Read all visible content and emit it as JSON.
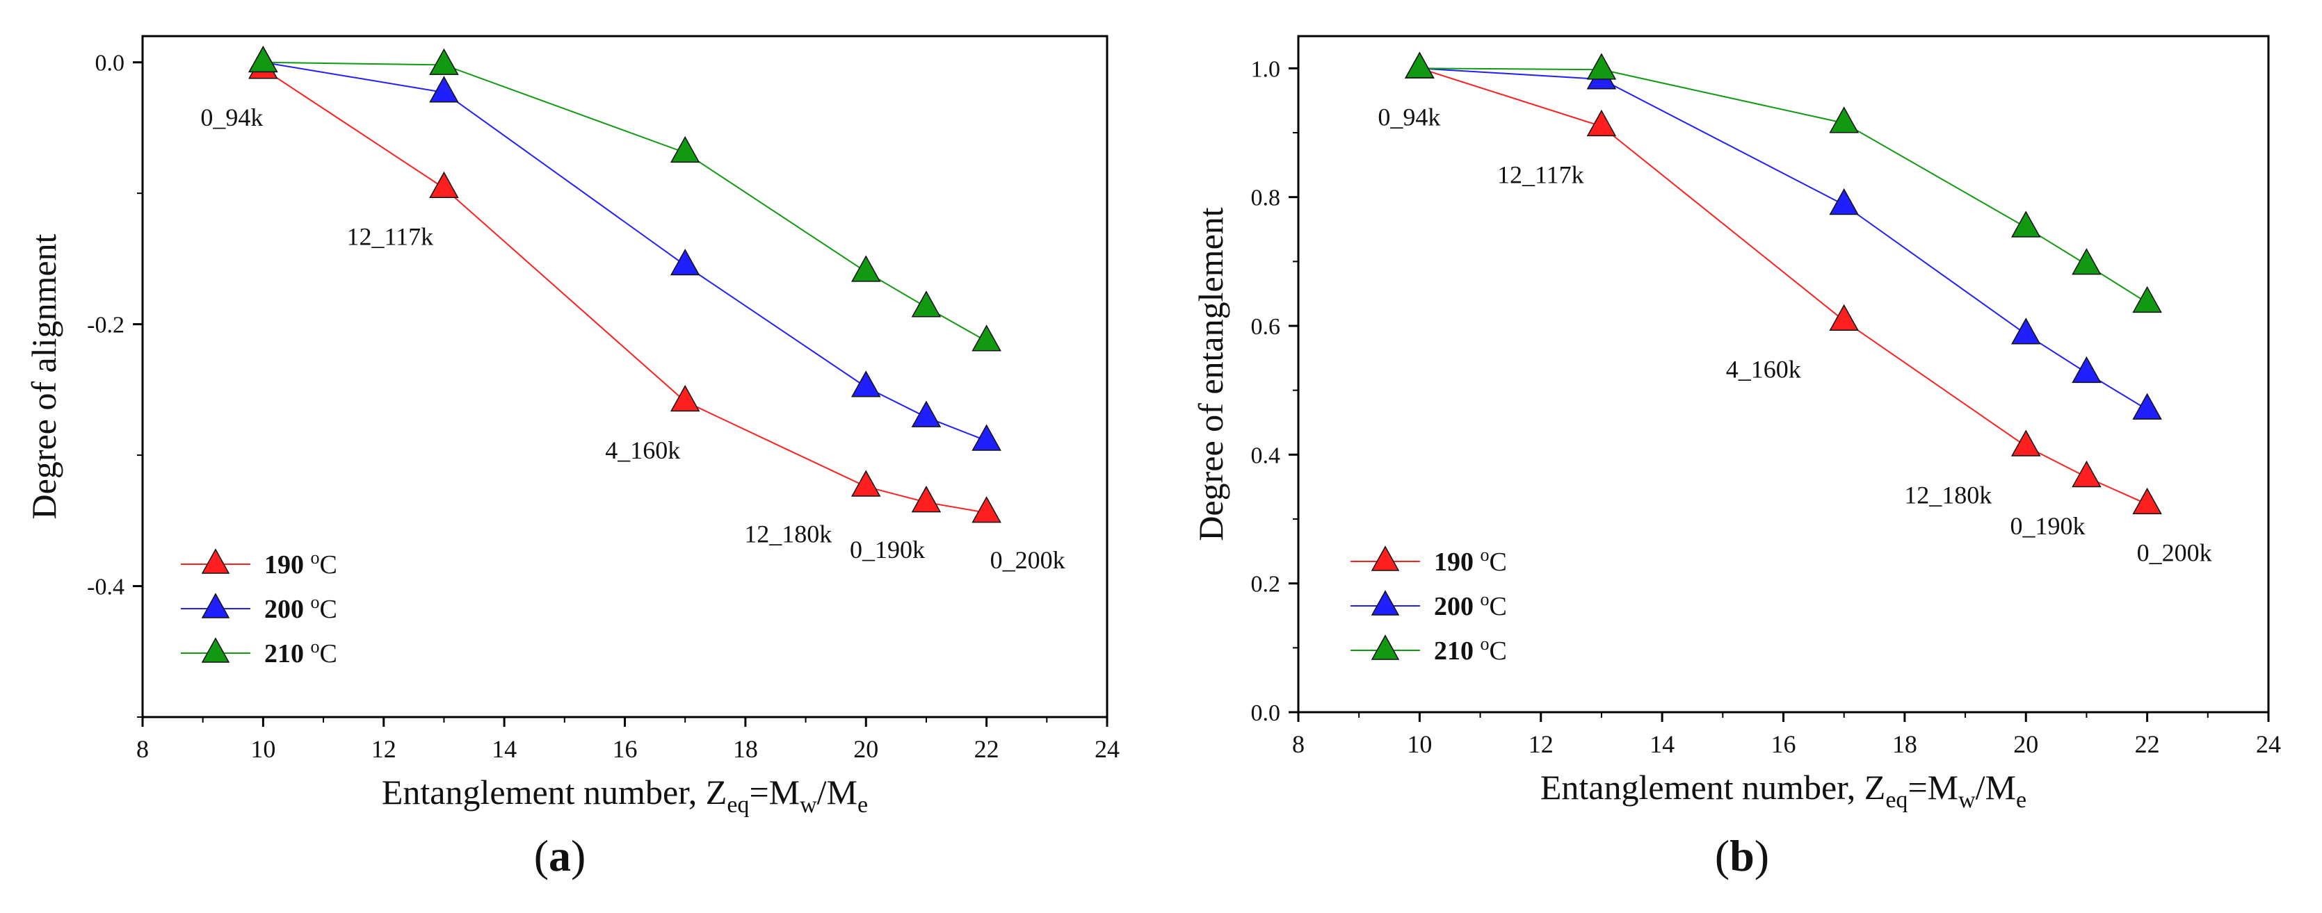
{
  "chart_data": [
    {
      "type": "line",
      "panel": "(a)",
      "panel_letter": "a",
      "xlabel": "Entanglement number,",
      "ylabel": "Degree of alignment",
      "xlim": [
        8,
        24
      ],
      "ylim": [
        -0.5,
        0.02
      ],
      "xticks": [
        8,
        10,
        12,
        14,
        16,
        18,
        20,
        22,
        24
      ],
      "yticks": [
        0.0,
        -0.2,
        -0.4
      ],
      "ytick_labels": [
        "0.0",
        "-0.2",
        "-0.4"
      ],
      "x": [
        10,
        13,
        17,
        20,
        21,
        22
      ],
      "series": [
        {
          "name": "190",
          "color": "#ff1f1f",
          "values": [
            -0.005,
            -0.096,
            -0.259,
            -0.324,
            -0.336,
            -0.344
          ]
        },
        {
          "name": "200",
          "color": "#1f1fff",
          "values": [
            0.0,
            -0.023,
            -0.155,
            -0.248,
            -0.271,
            -0.289
          ]
        },
        {
          "name": "210",
          "color": "#119911",
          "values": [
            0.0,
            -0.002,
            -0.069,
            -0.16,
            -0.187,
            -0.213
          ]
        }
      ],
      "annotations": [
        {
          "text": "0_94k",
          "x": 10,
          "y": -0.005
        },
        {
          "text": "12_117k",
          "x": 13,
          "y": -0.096
        },
        {
          "text": "4_160k",
          "x": 17,
          "y": -0.259
        },
        {
          "text": "12_180k",
          "x": 20,
          "y": -0.324
        },
        {
          "text": "0_190k",
          "x": 21,
          "y": -0.336
        },
        {
          "text": "0_200k",
          "x": 22,
          "y": -0.344
        }
      ],
      "legend_position": "bottom-left"
    },
    {
      "type": "line",
      "panel": "(b)",
      "panel_letter": "b",
      "xlabel": "Entanglement number,",
      "ylabel": "Degree of entanglement",
      "xlim": [
        8,
        24
      ],
      "ylim": [
        0.0,
        1.05
      ],
      "xticks": [
        8,
        10,
        12,
        14,
        16,
        18,
        20,
        22,
        24
      ],
      "yticks": [
        0.0,
        0.2,
        0.4,
        0.6,
        0.8,
        1.0
      ],
      "ytick_labels": [
        "0.0",
        "0.2",
        "0.4",
        "0.6",
        "0.8",
        "1.0"
      ],
      "x": [
        10,
        13,
        17,
        20,
        21,
        22
      ],
      "series": [
        {
          "name": "190",
          "color": "#ff1f1f",
          "values": [
            1.0,
            0.91,
            0.608,
            0.413,
            0.365,
            0.323
          ]
        },
        {
          "name": "200",
          "color": "#1f1fff",
          "values": [
            1.0,
            0.983,
            0.788,
            0.587,
            0.527,
            0.47
          ]
        },
        {
          "name": "210",
          "color": "#119911",
          "values": [
            1.0,
            0.998,
            0.915,
            0.753,
            0.695,
            0.636
          ]
        }
      ],
      "annotations": [
        {
          "text": "0_94k",
          "x": 10,
          "y": 1.0
        },
        {
          "text": "12_117k",
          "x": 13,
          "y": 0.91
        },
        {
          "text": "4_160k",
          "x": 17,
          "y": 0.608
        },
        {
          "text": "12_180k",
          "x": 20,
          "y": 0.413
        },
        {
          "text": "0_190k",
          "x": 21,
          "y": 0.365
        },
        {
          "text": "0_200k",
          "x": 22,
          "y": 0.323
        }
      ],
      "legend_position": "bottom-left"
    }
  ],
  "legend_unit": "C",
  "degree_symbol": "o",
  "z_symbol": "Z",
  "z_subscript": "eq",
  "m_w_base": "=M",
  "m_w_sub": "w",
  "m_e_base": "/M",
  "m_e_sub": "e",
  "paren_open": "(",
  "paren_close": ")"
}
